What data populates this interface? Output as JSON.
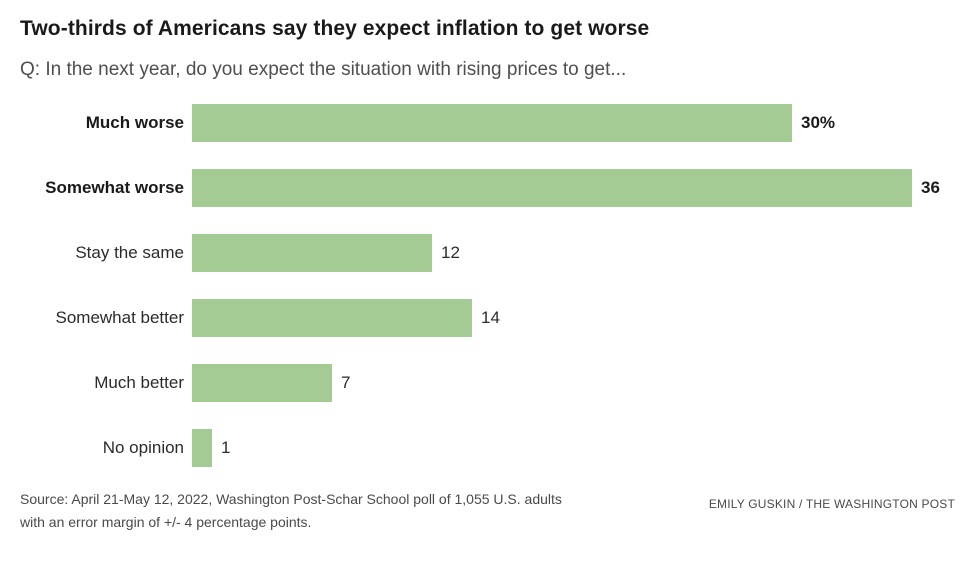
{
  "header": {
    "title": "Two-thirds of Americans say they expect inflation to get worse",
    "subtitle": "Q: In the next year, do you expect the situation with rising prices to get..."
  },
  "chart_data": {
    "type": "bar",
    "orientation": "horizontal",
    "title": "Two-thirds of Americans say they expect inflation to get worse",
    "subtitle": "Q: In the next year, do you expect the situation with rising prices to get...",
    "categories": [
      "Much worse",
      "Somewhat worse",
      "Stay the same",
      "Somewhat better",
      "Much better",
      "No opinion"
    ],
    "values": [
      30,
      36,
      12,
      14,
      7,
      1
    ],
    "value_labels": [
      "30%",
      "36",
      "12",
      "14",
      "7",
      "1"
    ],
    "emphasized": [
      true,
      true,
      false,
      false,
      false,
      false
    ],
    "bar_color": "#a4cb94",
    "xlabel": "",
    "ylabel": "",
    "xlim": [
      0,
      36
    ],
    "grid": false,
    "legend": false,
    "value_label_position": "end-of-bar"
  },
  "footer": {
    "source_lines": [
      "Source: April 21-May 12, 2022, Washington Post-Schar School poll of 1,055 U.S. adults",
      "with an error margin of +/- 4 percentage points."
    ],
    "credit": "EMILY GUSKIN / THE WASHINGTON POST"
  }
}
